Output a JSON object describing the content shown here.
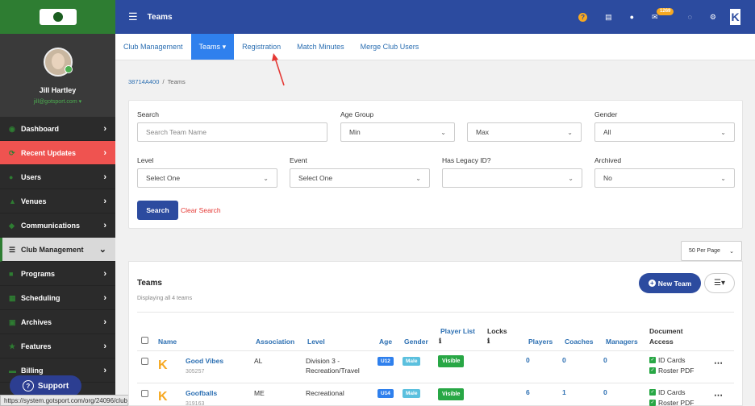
{
  "sidebar": {
    "user_name": "Jill Hartley",
    "user_email": "jill@gotsport.com",
    "items": [
      {
        "label": "Dashboard",
        "icon": "dashboard-icon"
      },
      {
        "label": "Recent Updates",
        "icon": "refresh-icon"
      },
      {
        "label": "Users",
        "icon": "users-icon"
      },
      {
        "label": "Venues",
        "icon": "venues-icon"
      },
      {
        "label": "Communications",
        "icon": "chat-icon"
      },
      {
        "label": "Club Management",
        "icon": "list-icon"
      },
      {
        "label": "Programs",
        "icon": "programs-icon"
      },
      {
        "label": "Scheduling",
        "icon": "calendar-icon"
      },
      {
        "label": "Archives",
        "icon": "archive-icon"
      },
      {
        "label": "Features",
        "icon": "star-icon"
      },
      {
        "label": "Billing",
        "icon": "billing-icon"
      }
    ],
    "support_label": "Support",
    "status_url": "https://system.gotsport.com/org/24096/club_management"
  },
  "topbar": {
    "title": "Teams",
    "notification_count": "1269"
  },
  "subnav": {
    "tabs": [
      "Club Management",
      "Teams",
      "Registration",
      "Match Minutes",
      "Merge Club Users"
    ]
  },
  "breadcrumb": {
    "root": "38714A400",
    "current": "Teams"
  },
  "filters": {
    "search_label": "Search",
    "search_placeholder": "Search Team Name",
    "age_group_label": "Age Group",
    "age_min": "Min",
    "age_max": "Max",
    "gender_label": "Gender",
    "gender_value": "All",
    "level_label": "Level",
    "level_value": "Select One",
    "event_label": "Event",
    "event_value": "Select One",
    "legacy_label": "Has Legacy ID?",
    "legacy_value": "",
    "archived_label": "Archived",
    "archived_value": "No",
    "search_button": "Search",
    "clear_button": "Clear Search"
  },
  "per_page": "50 Per Page",
  "teams": {
    "title": "Teams",
    "subtitle": "Displaying all 4 teams",
    "new_team_button": "New Team",
    "headers": {
      "name": "Name",
      "association": "Association",
      "level": "Level",
      "age": "Age",
      "gender": "Gender",
      "player_list": "Player List",
      "locks": "Locks",
      "players": "Players",
      "coaches": "Coaches",
      "managers": "Managers",
      "document_access_1": "Document",
      "document_access_2": "Access"
    },
    "rows": [
      {
        "name": "Good Vibes",
        "id": "305257",
        "association": "AL",
        "level_1": "Division 3 -",
        "level_2": "Recreation/Travel",
        "age": "U12",
        "gender": "Male",
        "player_list": "Visible",
        "players": "0",
        "coaches": "0",
        "managers": "0",
        "doc1": "ID Cards",
        "doc2": "Roster PDF"
      },
      {
        "name": "Goofballs",
        "id": "319163",
        "association": "ME",
        "level_1": "Recreational",
        "level_2": "",
        "age": "U14",
        "gender": "Male",
        "player_list": "Visible",
        "players": "6",
        "coaches": "1",
        "managers": "0",
        "doc1": "ID Cards",
        "doc2": "Roster PDF"
      }
    ]
  }
}
